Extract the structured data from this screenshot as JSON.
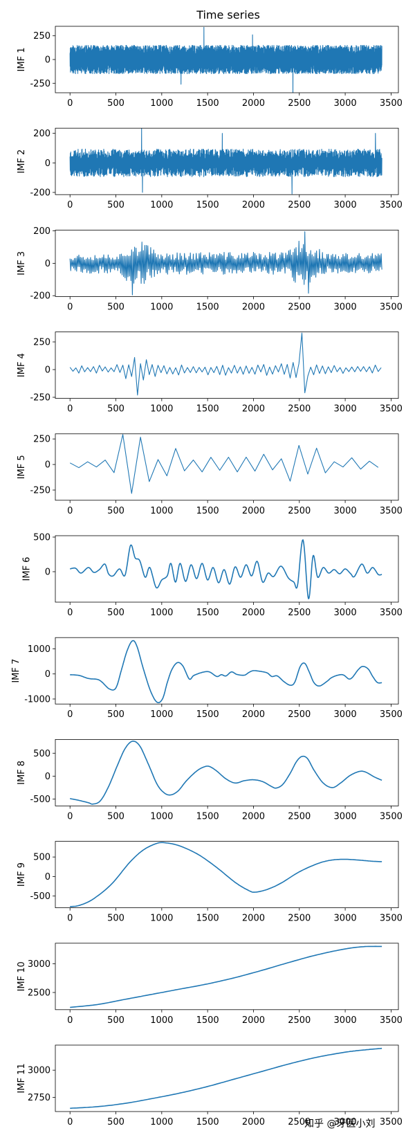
{
  "chart_data": {
    "type": "line",
    "title": "Time series",
    "watermark": "知乎 @牙医小刘",
    "line_color": "#1f77b4",
    "x_range": [
      0,
      3400
    ],
    "x_ticks": [
      0,
      500,
      1000,
      1500,
      2000,
      2500,
      3000,
      3500
    ],
    "panels": [
      {
        "ylabel": "IMF 1",
        "ylim": [
          -350,
          350
        ],
        "yticks": [
          -250,
          0,
          250
        ],
        "ytick_labels": [
          "-250",
          "0",
          "250"
        ],
        "mode": "noise",
        "noise_amp": 120,
        "min_period": 2,
        "seed": 11,
        "density": 1,
        "spikes": [
          [
            1460,
            340
          ],
          [
            2430,
            -350
          ],
          [
            1210,
            -260
          ],
          [
            1990,
            260
          ]
        ]
      },
      {
        "ylabel": "IMF 2",
        "ylim": [
          -215,
          235
        ],
        "yticks": [
          -200,
          0,
          200
        ],
        "ytick_labels": [
          "-200",
          "0",
          "200"
        ],
        "mode": "noise",
        "noise_amp": 75,
        "min_period": 4,
        "seed": 23,
        "density": 1,
        "spikes": [
          [
            780,
            232
          ],
          [
            790,
            -200
          ],
          [
            1660,
            200
          ],
          [
            2420,
            -210
          ],
          [
            3330,
            200
          ]
        ]
      },
      {
        "ylabel": "IMF 3",
        "ylim": [
          -205,
          205
        ],
        "yticks": [
          -200,
          0,
          200
        ],
        "ytick_labels": [
          "-200",
          "0",
          "200"
        ],
        "mode": "noise",
        "noise_amp": 55,
        "min_period": 8,
        "seed": 37,
        "density": 2,
        "env": [
          [
            0,
            0.9
          ],
          [
            550,
            0.9
          ],
          [
            650,
            2.0
          ],
          [
            800,
            2.0
          ],
          [
            950,
            1.0
          ],
          [
            2350,
            1.0
          ],
          [
            2500,
            2.1
          ],
          [
            2650,
            1.6
          ],
          [
            2800,
            0.9
          ],
          [
            3400,
            0.9
          ]
        ],
        "spikes": [
          [
            680,
            -195
          ],
          [
            2560,
            195
          ],
          [
            2600,
            -185
          ]
        ]
      },
      {
        "ylabel": "IMF 4",
        "ylim": [
          -260,
          340
        ],
        "yticks": [
          -250,
          0,
          250
        ],
        "ytick_labels": [
          "-250",
          "0",
          "250"
        ],
        "mode": "noise",
        "noise_amp": 35,
        "min_period": 16,
        "seed": 53,
        "density": 4,
        "env": [
          [
            0,
            1.0
          ],
          [
            500,
            1.0
          ],
          [
            600,
            2.5
          ],
          [
            800,
            2.8
          ],
          [
            950,
            1.4
          ],
          [
            2300,
            1.2
          ],
          [
            2500,
            2.5
          ],
          [
            2650,
            1.3
          ],
          [
            3000,
            0.9
          ],
          [
            3400,
            1.2
          ]
        ],
        "spikes": [
          [
            2540,
            330
          ],
          [
            2560,
            -210
          ],
          [
            750,
            -230
          ]
        ]
      },
      {
        "ylabel": "IMF 5",
        "ylim": [
          -350,
          300
        ],
        "yticks": [
          -250,
          0,
          250
        ],
        "ytick_labels": [
          "-250",
          "0",
          "250"
        ],
        "mode": "noise",
        "noise_amp": 45,
        "min_period": 32,
        "seed": 71,
        "density": 6,
        "env": [
          [
            0,
            0.6
          ],
          [
            400,
            1.0
          ],
          [
            500,
            2.0
          ],
          [
            600,
            6.5
          ],
          [
            800,
            6.5
          ],
          [
            900,
            2.5
          ],
          [
            1100,
            4.0
          ],
          [
            1200,
            1.8
          ],
          [
            2300,
            1.8
          ],
          [
            2450,
            5.0
          ],
          [
            2600,
            5.0
          ],
          [
            2750,
            1.5
          ],
          [
            3400,
            1.3
          ]
        ],
        "spikes": []
      },
      {
        "ylabel": "IMF 6",
        "ylim": [
          -440,
          520
        ],
        "yticks": [
          0,
          500
        ],
        "ytick_labels": [
          "0",
          "500"
        ],
        "mode": "smooth",
        "points": [
          [
            0,
            40
          ],
          [
            60,
            50
          ],
          [
            120,
            -20
          ],
          [
            200,
            60
          ],
          [
            260,
            -10
          ],
          [
            320,
            30
          ],
          [
            380,
            110
          ],
          [
            420,
            -30
          ],
          [
            470,
            -60
          ],
          [
            540,
            40
          ],
          [
            600,
            -50
          ],
          [
            660,
            380
          ],
          [
            710,
            200
          ],
          [
            760,
            160
          ],
          [
            820,
            -80
          ],
          [
            870,
            60
          ],
          [
            940,
            -230
          ],
          [
            1000,
            -120
          ],
          [
            1060,
            -60
          ],
          [
            1100,
            120
          ],
          [
            1150,
            -150
          ],
          [
            1200,
            120
          ],
          [
            1260,
            -140
          ],
          [
            1320,
            100
          ],
          [
            1380,
            -100
          ],
          [
            1440,
            120
          ],
          [
            1500,
            -120
          ],
          [
            1560,
            60
          ],
          [
            1620,
            -160
          ],
          [
            1680,
            30
          ],
          [
            1740,
            -180
          ],
          [
            1800,
            70
          ],
          [
            1860,
            -80
          ],
          [
            1920,
            100
          ],
          [
            1980,
            -60
          ],
          [
            2040,
            150
          ],
          [
            2100,
            -150
          ],
          [
            2160,
            -20
          ],
          [
            2220,
            -70
          ],
          [
            2300,
            80
          ],
          [
            2380,
            -90
          ],
          [
            2440,
            -150
          ],
          [
            2480,
            -200
          ],
          [
            2540,
            460
          ],
          [
            2600,
            -390
          ],
          [
            2650,
            230
          ],
          [
            2700,
            -80
          ],
          [
            2760,
            60
          ],
          [
            2820,
            -20
          ],
          [
            2880,
            30
          ],
          [
            2940,
            -30
          ],
          [
            3000,
            40
          ],
          [
            3060,
            -30
          ],
          [
            3100,
            -70
          ],
          [
            3180,
            110
          ],
          [
            3240,
            -20
          ],
          [
            3300,
            60
          ],
          [
            3360,
            -40
          ],
          [
            3400,
            -40
          ]
        ]
      },
      {
        "ylabel": "IMF 7",
        "ylim": [
          -1200,
          1450
        ],
        "yticks": [
          -1000,
          0,
          1000
        ],
        "ytick_labels": [
          "-1000",
          "0",
          "1000"
        ],
        "mode": "smooth",
        "points": [
          [
            0,
            -30
          ],
          [
            100,
            -60
          ],
          [
            200,
            -180
          ],
          [
            300,
            -220
          ],
          [
            350,
            -330
          ],
          [
            430,
            -600
          ],
          [
            500,
            -560
          ],
          [
            560,
            150
          ],
          [
            620,
            900
          ],
          [
            680,
            1320
          ],
          [
            730,
            1100
          ],
          [
            800,
            200
          ],
          [
            880,
            -700
          ],
          [
            950,
            -1130
          ],
          [
            1010,
            -980
          ],
          [
            1060,
            -350
          ],
          [
            1110,
            170
          ],
          [
            1170,
            450
          ],
          [
            1230,
            320
          ],
          [
            1300,
            -200
          ],
          [
            1350,
            -60
          ],
          [
            1450,
            70
          ],
          [
            1520,
            80
          ],
          [
            1600,
            -100
          ],
          [
            1650,
            -30
          ],
          [
            1700,
            -80
          ],
          [
            1760,
            80
          ],
          [
            1820,
            -20
          ],
          [
            1900,
            -50
          ],
          [
            1950,
            60
          ],
          [
            2000,
            130
          ],
          [
            2080,
            100
          ],
          [
            2150,
            40
          ],
          [
            2200,
            -100
          ],
          [
            2260,
            -80
          ],
          [
            2330,
            -300
          ],
          [
            2400,
            -450
          ],
          [
            2450,
            -330
          ],
          [
            2510,
            300
          ],
          [
            2560,
            420
          ],
          [
            2610,
            60
          ],
          [
            2660,
            -350
          ],
          [
            2720,
            -480
          ],
          [
            2800,
            -300
          ],
          [
            2850,
            -150
          ],
          [
            2920,
            -50
          ],
          [
            2980,
            -40
          ],
          [
            3040,
            -200
          ],
          [
            3080,
            -130
          ],
          [
            3140,
            160
          ],
          [
            3190,
            300
          ],
          [
            3250,
            200
          ],
          [
            3300,
            -100
          ],
          [
            3350,
            -340
          ],
          [
            3400,
            -350
          ]
        ]
      },
      {
        "ylabel": "IMF 8",
        "ylim": [
          -650,
          800
        ],
        "yticks": [
          -500,
          0,
          500
        ],
        "ytick_labels": [
          "-500",
          "0",
          "500"
        ],
        "mode": "smooth",
        "points": [
          [
            0,
            -490
          ],
          [
            100,
            -530
          ],
          [
            200,
            -580
          ],
          [
            250,
            -610
          ],
          [
            330,
            -540
          ],
          [
            420,
            -230
          ],
          [
            520,
            250
          ],
          [
            600,
            600
          ],
          [
            680,
            760
          ],
          [
            760,
            660
          ],
          [
            850,
            280
          ],
          [
            950,
            -180
          ],
          [
            1030,
            -370
          ],
          [
            1100,
            -410
          ],
          [
            1180,
            -320
          ],
          [
            1270,
            -100
          ],
          [
            1380,
            110
          ],
          [
            1460,
            200
          ],
          [
            1520,
            210
          ],
          [
            1600,
            110
          ],
          [
            1700,
            -60
          ],
          [
            1800,
            -150
          ],
          [
            1900,
            -100
          ],
          [
            2000,
            -80
          ],
          [
            2100,
            -120
          ],
          [
            2200,
            -230
          ],
          [
            2250,
            -260
          ],
          [
            2320,
            -180
          ],
          [
            2400,
            60
          ],
          [
            2470,
            320
          ],
          [
            2530,
            430
          ],
          [
            2590,
            380
          ],
          [
            2660,
            130
          ],
          [
            2760,
            -150
          ],
          [
            2860,
            -250
          ],
          [
            2950,
            -150
          ],
          [
            3050,
            10
          ],
          [
            3150,
            100
          ],
          [
            3220,
            90
          ],
          [
            3320,
            -20
          ],
          [
            3400,
            -90
          ]
        ]
      },
      {
        "ylabel": "IMF 9",
        "ylim": [
          -800,
          900
        ],
        "yticks": [
          -500,
          0,
          500
        ],
        "ytick_labels": [
          "-500",
          "0",
          "500"
        ],
        "mode": "smooth",
        "points": [
          [
            0,
            -770
          ],
          [
            100,
            -740
          ],
          [
            250,
            -580
          ],
          [
            450,
            -200
          ],
          [
            650,
            360
          ],
          [
            800,
            680
          ],
          [
            950,
            850
          ],
          [
            1050,
            860
          ],
          [
            1200,
            780
          ],
          [
            1400,
            560
          ],
          [
            1600,
            230
          ],
          [
            1800,
            -150
          ],
          [
            1950,
            -360
          ],
          [
            2020,
            -400
          ],
          [
            2150,
            -330
          ],
          [
            2300,
            -170
          ],
          [
            2500,
            120
          ],
          [
            2700,
            330
          ],
          [
            2850,
            420
          ],
          [
            3000,
            440
          ],
          [
            3150,
            420
          ],
          [
            3300,
            390
          ],
          [
            3400,
            380
          ]
        ]
      },
      {
        "ylabel": "IMF 10",
        "ylim": [
          2200,
          3360
        ],
        "yticks": [
          2500,
          3000
        ],
        "ytick_labels": [
          "2500",
          "3000"
        ],
        "mode": "smooth",
        "points": [
          [
            0,
            2240
          ],
          [
            300,
            2290
          ],
          [
            600,
            2380
          ],
          [
            900,
            2470
          ],
          [
            1200,
            2560
          ],
          [
            1500,
            2650
          ],
          [
            1800,
            2760
          ],
          [
            2100,
            2890
          ],
          [
            2400,
            3030
          ],
          [
            2700,
            3160
          ],
          [
            3000,
            3260
          ],
          [
            3200,
            3300
          ],
          [
            3400,
            3305
          ]
        ]
      },
      {
        "ylabel": "IMF 11",
        "ylim": [
          2620,
          3230
        ],
        "yticks": [
          2750,
          3000
        ],
        "ytick_labels": [
          "2750",
          "3000"
        ],
        "mode": "smooth",
        "points": [
          [
            0,
            2650
          ],
          [
            300,
            2665
          ],
          [
            600,
            2695
          ],
          [
            900,
            2740
          ],
          [
            1200,
            2790
          ],
          [
            1500,
            2850
          ],
          [
            1800,
            2920
          ],
          [
            2100,
            2990
          ],
          [
            2400,
            3060
          ],
          [
            2700,
            3120
          ],
          [
            3000,
            3165
          ],
          [
            3200,
            3185
          ],
          [
            3400,
            3200
          ]
        ]
      }
    ]
  }
}
